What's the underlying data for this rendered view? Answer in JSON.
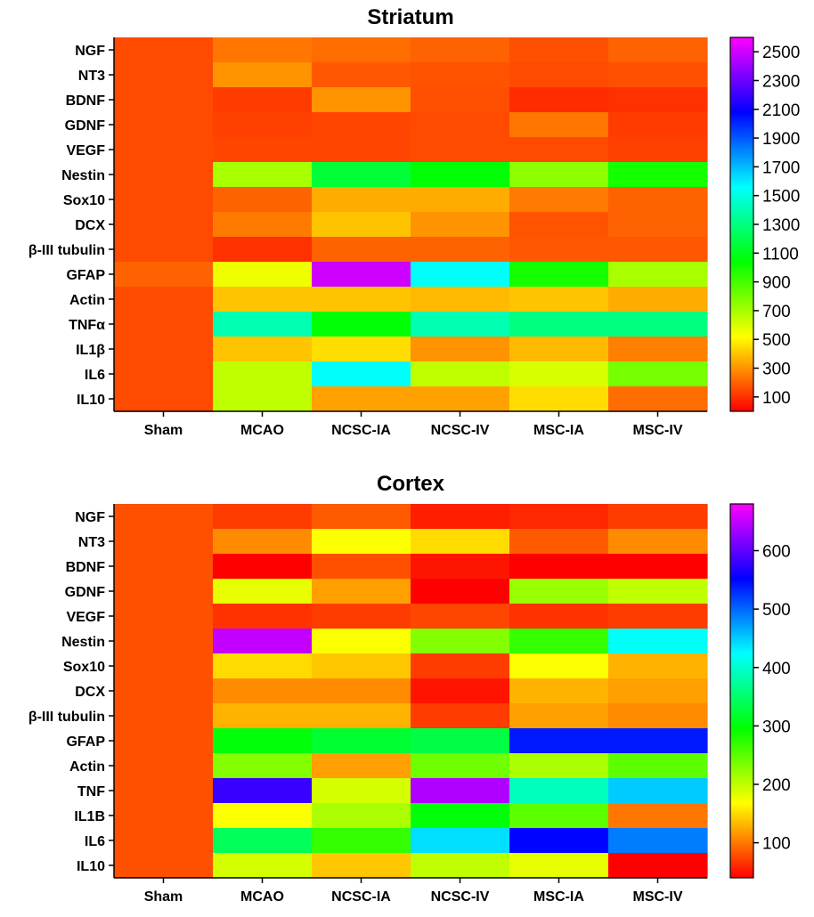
{
  "chart_data": [
    {
      "type": "heatmap",
      "title": "Striatum",
      "columns": [
        "Sham",
        "MCAO",
        "NCSC-IA",
        "NCSC-IV",
        "MSC-IA",
        "MSC-IV"
      ],
      "rows": [
        "NGF",
        "NT3",
        "BDNF",
        "GDNF",
        "VEGF",
        "Nestin",
        "Sox10",
        "DCX",
        "β-III tubulin",
        "GFAP",
        "Actin",
        "TNFα",
        "IL1β",
        "IL6",
        "IL10"
      ],
      "values": [
        [
          150,
          240,
          220,
          200,
          160,
          200
        ],
        [
          150,
          300,
          180,
          170,
          150,
          160
        ],
        [
          150,
          120,
          300,
          160,
          90,
          100
        ],
        [
          150,
          130,
          140,
          150,
          240,
          120
        ],
        [
          150,
          140,
          140,
          150,
          150,
          130
        ],
        [
          150,
          700,
          1150,
          1050,
          750,
          1000
        ],
        [
          150,
          200,
          350,
          350,
          250,
          200
        ],
        [
          150,
          250,
          400,
          300,
          170,
          200
        ],
        [
          150,
          100,
          200,
          200,
          180,
          180
        ],
        [
          200,
          550,
          2500,
          1550,
          1000,
          700
        ],
        [
          150,
          400,
          400,
          380,
          400,
          350
        ],
        [
          150,
          1400,
          1050,
          1400,
          1300,
          1300
        ],
        [
          150,
          400,
          450,
          300,
          380,
          260
        ],
        [
          150,
          650,
          1550,
          650,
          600,
          800
        ],
        [
          150,
          650,
          330,
          330,
          450,
          220
        ]
      ],
      "colorbar_ticks": [
        100,
        300,
        500,
        700,
        900,
        1100,
        1300,
        1500,
        1700,
        1900,
        2100,
        2300,
        2500
      ],
      "range": [
        0,
        2600
      ]
    },
    {
      "type": "heatmap",
      "title": "Cortex",
      "columns": [
        "Sham",
        "MCAO",
        "NCSC-IA",
        "NCSC-IV",
        "MSC-IA",
        "MSC-IV"
      ],
      "rows": [
        "NGF",
        "NT3",
        "BDNF",
        "GDNF",
        "VEGF",
        "Nestin",
        "Sox10",
        "DCX",
        "β-III tubulin",
        "GFAP",
        "Actin",
        "TNF",
        "IL1B",
        "IL6",
        "IL10"
      ],
      "values": [
        [
          80,
          70,
          85,
          55,
          60,
          70
        ],
        [
          80,
          110,
          170,
          150,
          85,
          110
        ],
        [
          80,
          40,
          80,
          50,
          30,
          40
        ],
        [
          80,
          180,
          120,
          35,
          220,
          200
        ],
        [
          80,
          65,
          70,
          75,
          65,
          70
        ],
        [
          80,
          650,
          170,
          230,
          270,
          420
        ],
        [
          80,
          150,
          140,
          70,
          170,
          130
        ],
        [
          80,
          110,
          110,
          50,
          130,
          120
        ],
        [
          80,
          130,
          130,
          70,
          120,
          110
        ],
        [
          80,
          300,
          320,
          330,
          540,
          540
        ],
        [
          80,
          230,
          120,
          240,
          210,
          250
        ],
        [
          80,
          580,
          190,
          640,
          390,
          450
        ],
        [
          80,
          170,
          210,
          300,
          250,
          100
        ],
        [
          80,
          340,
          270,
          440,
          550,
          490
        ],
        [
          80,
          190,
          140,
          200,
          180,
          40
        ]
      ],
      "colorbar_ticks": [
        100,
        200,
        300,
        400,
        500,
        600
      ],
      "range": [
        40,
        680
      ]
    }
  ]
}
